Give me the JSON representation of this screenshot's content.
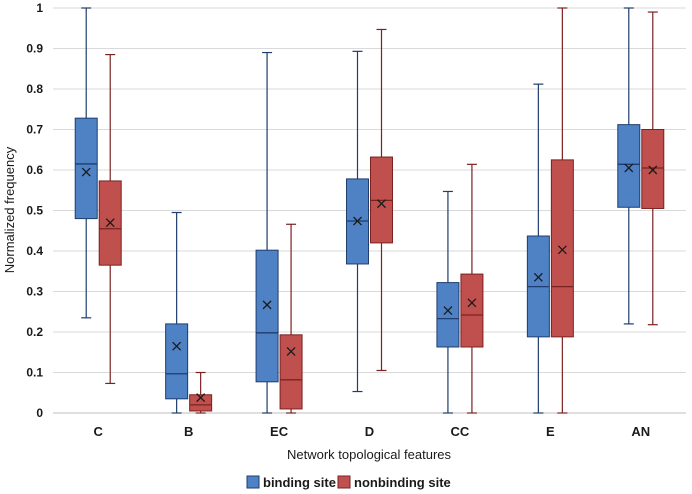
{
  "chart_data": {
    "type": "boxplot",
    "title": "",
    "xlabel": "Network topological features",
    "ylabel": "Normalized frequency",
    "ylim": [
      0,
      1
    ],
    "yticks": [
      0,
      0.1,
      0.2,
      0.3,
      0.4,
      0.5,
      0.6,
      0.7,
      0.8,
      0.9,
      1
    ],
    "ytick_labels": [
      "0",
      "0.1",
      "0.2",
      "0.3",
      "0.4",
      "0.5",
      "0.6",
      "0.7",
      "0.8",
      "0.9",
      "1"
    ],
    "grid": true,
    "legend_position": "bottom",
    "categories": [
      "C",
      "B",
      "EC",
      "D",
      "CC",
      "E",
      "AN"
    ],
    "series": [
      {
        "name": "binding site",
        "color": "#4f81c5",
        "edge_color": "#1f3d6e",
        "boxes": [
          {
            "min": 0.235,
            "q1": 0.48,
            "median": 0.615,
            "mean": 0.595,
            "q3": 0.728,
            "max": 1.0
          },
          {
            "min": 0.0,
            "q1": 0.035,
            "median": 0.097,
            "mean": 0.165,
            "q3": 0.22,
            "max": 0.495
          },
          {
            "min": 0.0,
            "q1": 0.077,
            "median": 0.198,
            "mean": 0.267,
            "q3": 0.402,
            "max": 0.89
          },
          {
            "min": 0.053,
            "q1": 0.368,
            "median": 0.474,
            "mean": 0.474,
            "q3": 0.578,
            "max": 0.893
          },
          {
            "min": 0.0,
            "q1": 0.163,
            "median": 0.233,
            "mean": 0.253,
            "q3": 0.322,
            "max": 0.547
          },
          {
            "min": 0.0,
            "q1": 0.188,
            "median": 0.312,
            "mean": 0.335,
            "q3": 0.437,
            "max": 0.812
          },
          {
            "min": 0.22,
            "q1": 0.508,
            "median": 0.614,
            "mean": 0.605,
            "q3": 0.712,
            "max": 1.0
          }
        ]
      },
      {
        "name": "nonbinding site",
        "color": "#c0504d",
        "edge_color": "#7a2220",
        "boxes": [
          {
            "min": 0.073,
            "q1": 0.365,
            "median": 0.455,
            "mean": 0.47,
            "q3": 0.573,
            "max": 0.885
          },
          {
            "min": 0.0,
            "q1": 0.005,
            "median": 0.02,
            "mean": 0.038,
            "q3": 0.045,
            "max": 0.1
          },
          {
            "min": 0.0,
            "q1": 0.01,
            "median": 0.082,
            "mean": 0.152,
            "q3": 0.193,
            "max": 0.466
          },
          {
            "min": 0.105,
            "q1": 0.42,
            "median": 0.525,
            "mean": 0.517,
            "q3": 0.632,
            "max": 0.947
          },
          {
            "min": 0.0,
            "q1": 0.163,
            "median": 0.242,
            "mean": 0.272,
            "q3": 0.343,
            "max": 0.614
          },
          {
            "min": 0.0,
            "q1": 0.188,
            "median": 0.312,
            "mean": 0.403,
            "q3": 0.625,
            "max": 1.0
          },
          {
            "min": 0.218,
            "q1": 0.505,
            "median": 0.605,
            "mean": 0.6,
            "q3": 0.7,
            "max": 0.99
          }
        ]
      }
    ]
  }
}
